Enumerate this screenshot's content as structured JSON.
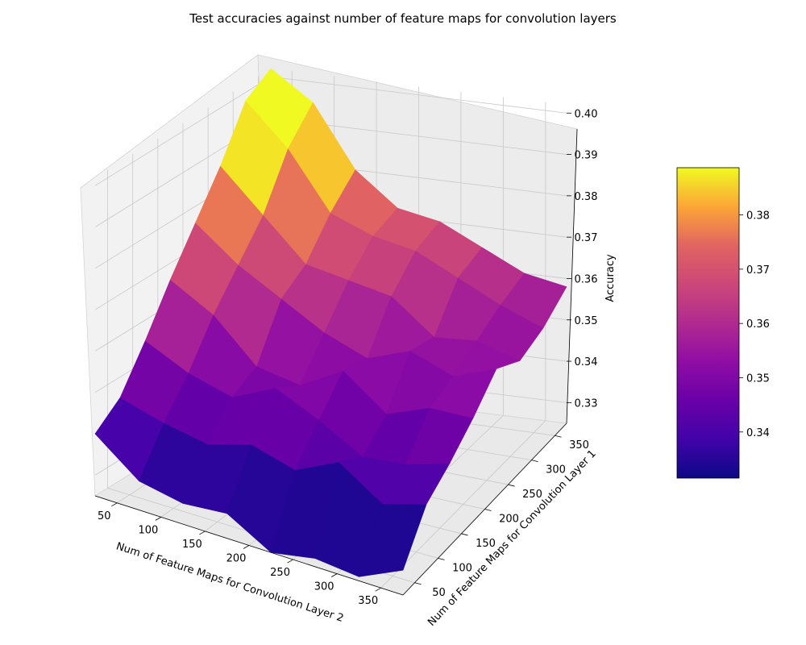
{
  "figure": {
    "title": "Test accuracies against number of feature maps for convolution layers"
  },
  "chart_data": {
    "type": "surface",
    "title": "Test accuracies against number of feature maps for convolution layers",
    "xlabel": "Num of Feature Maps for Convolution Layer 2",
    "ylabel": "Num of Feature Maps for Convolution Layer 1",
    "zlabel": "Accuracy",
    "x": [
      25,
      75,
      125,
      175,
      225,
      275,
      325,
      375
    ],
    "y": [
      25,
      75,
      125,
      175,
      225,
      275,
      325,
      375
    ],
    "xticks": [
      "50",
      "100",
      "150",
      "200",
      "250",
      "300",
      "350"
    ],
    "yticks": [
      "50",
      "100",
      "150",
      "200",
      "250",
      "300",
      "350"
    ],
    "zticks": [
      "0.33",
      "0.34",
      "0.35",
      "0.36",
      "0.37",
      "0.38",
      "0.39",
      "0.40"
    ],
    "xlim": [
      25,
      375
    ],
    "ylim": [
      25,
      375
    ],
    "zlim": [
      0.325,
      0.402
    ],
    "z": [
      [
        0.34,
        0.332,
        0.33,
        0.331,
        0.325,
        0.327,
        0.326,
        0.331
      ],
      [
        0.345,
        0.342,
        0.34,
        0.343,
        0.34,
        0.345,
        0.338,
        0.341
      ],
      [
        0.355,
        0.35,
        0.347,
        0.352,
        0.347,
        0.341,
        0.342,
        0.345
      ],
      [
        0.366,
        0.36,
        0.35,
        0.348,
        0.354,
        0.346,
        0.35,
        0.35
      ],
      [
        0.376,
        0.368,
        0.362,
        0.356,
        0.352,
        0.356,
        0.352,
        0.356
      ],
      [
        0.386,
        0.376,
        0.366,
        0.364,
        0.362,
        0.354,
        0.355,
        0.352
      ],
      [
        0.398,
        0.388,
        0.374,
        0.37,
        0.368,
        0.363,
        0.358,
        0.354
      ],
      [
        0.402,
        0.395,
        0.38,
        0.372,
        0.37,
        0.365,
        0.36,
        0.358
      ]
    ],
    "colormap": "plasma",
    "colorbar": {
      "range": [
        0.3315,
        0.3887
      ],
      "ticks": [
        "0.34",
        "0.35",
        "0.36",
        "0.37",
        "0.38"
      ]
    },
    "grid": true
  }
}
